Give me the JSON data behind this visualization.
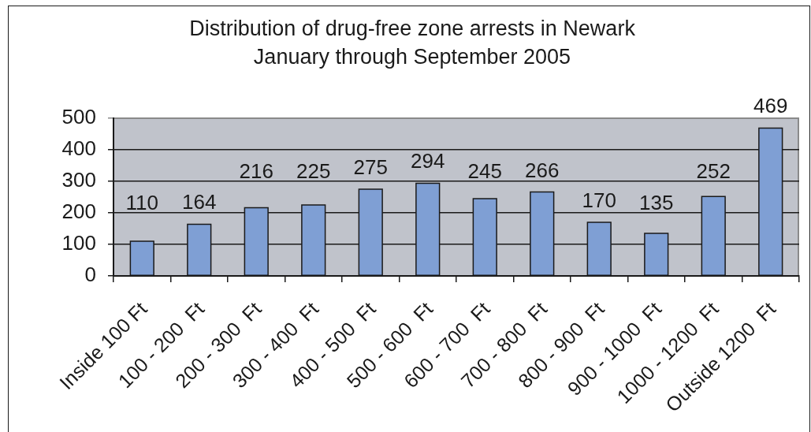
{
  "chart_data": {
    "type": "bar",
    "title": "Distribution of drug-free zone arrests in Newark",
    "subtitle": "January through September 2005",
    "categories": [
      "Inside 100 Ft",
      "100 - 200  Ft",
      "200 - 300  Ft",
      "300 - 400  Ft",
      "400 - 500  Ft",
      "500 - 600  Ft",
      "600 - 700  Ft",
      "700 - 800  Ft",
      "800 - 900  Ft",
      "900 - 1000  Ft",
      "1000 - 1200  Ft",
      "Outside 1200  Ft"
    ],
    "values": [
      110,
      164,
      216,
      225,
      275,
      294,
      245,
      266,
      170,
      135,
      252,
      469
    ],
    "color": "#7f9fd4",
    "ylim": [
      0,
      500
    ],
    "yticks": [
      0,
      100,
      200,
      300,
      400,
      500
    ],
    "grid": "y",
    "data_labels": true
  }
}
